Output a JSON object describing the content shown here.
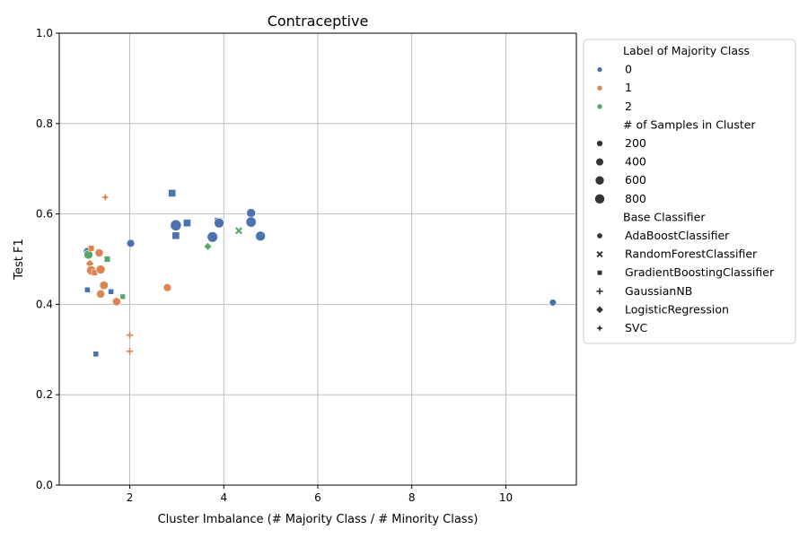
{
  "chart_data": {
    "type": "scatter",
    "title": "Contraceptive",
    "xlabel": "Cluster Imbalance (# Majority Class / # Minority Class)",
    "ylabel": "Test F1",
    "xlim": [
      0.5,
      11.5
    ],
    "ylim": [
      0.0,
      1.0
    ],
    "xticks": [
      2,
      4,
      6,
      8,
      10
    ],
    "yticks": [
      0.0,
      0.2,
      0.4,
      0.6,
      0.8,
      1.0
    ],
    "xtick_labels": [
      "2",
      "4",
      "6",
      "8",
      "10"
    ],
    "ytick_labels": [
      "0.0",
      "0.2",
      "0.4",
      "0.6",
      "0.8",
      "1.0"
    ],
    "grid": true,
    "legend_position": "outside-right",
    "legend": {
      "hue_title": "Label of Majority Class",
      "hue": [
        {
          "label": "0",
          "color": "#4c72b0"
        },
        {
          "label": "1",
          "color": "#dd8452"
        },
        {
          "label": "2",
          "color": "#55a868"
        }
      ],
      "size_title": "# of Samples in Cluster",
      "sizes": [
        {
          "label": "200",
          "value": 200
        },
        {
          "label": "400",
          "value": 400
        },
        {
          "label": "600",
          "value": 600
        },
        {
          "label": "800",
          "value": 800
        }
      ],
      "style_title": "Base Classifier",
      "styles": [
        {
          "label": "AdaBoostClassifier",
          "marker": "circle"
        },
        {
          "label": "RandomForestClassifier",
          "marker": "x"
        },
        {
          "label": "GradientBoostingClassifier",
          "marker": "square"
        },
        {
          "label": "GaussianNB",
          "marker": "plus"
        },
        {
          "label": "LogisticRegression",
          "marker": "diamond"
        },
        {
          "label": "SVC",
          "marker": "star"
        }
      ]
    },
    "points": [
      {
        "x": 1.1,
        "y": 0.517,
        "label": "0",
        "classifier": "AdaBoostClassifier",
        "samples": 300
      },
      {
        "x": 1.12,
        "y": 0.51,
        "label": "2",
        "classifier": "AdaBoostClassifier",
        "samples": 450
      },
      {
        "x": 1.1,
        "y": 0.432,
        "label": "0",
        "classifier": "GradientBoostingClassifier",
        "samples": 150
      },
      {
        "x": 1.15,
        "y": 0.49,
        "label": "1",
        "classifier": "LogisticRegression",
        "samples": 150
      },
      {
        "x": 1.18,
        "y": 0.524,
        "label": "1",
        "classifier": "GradientBoostingClassifier",
        "samples": 200
      },
      {
        "x": 1.18,
        "y": 0.475,
        "label": "1",
        "classifier": "AdaBoostClassifier",
        "samples": 500
      },
      {
        "x": 1.25,
        "y": 0.47,
        "label": "1",
        "classifier": "GradientBoostingClassifier",
        "samples": 200
      },
      {
        "x": 1.35,
        "y": 0.514,
        "label": "1",
        "classifier": "AdaBoostClassifier",
        "samples": 350
      },
      {
        "x": 1.38,
        "y": 0.477,
        "label": "1",
        "classifier": "AdaBoostClassifier",
        "samples": 450
      },
      {
        "x": 1.38,
        "y": 0.423,
        "label": "1",
        "classifier": "AdaBoostClassifier",
        "samples": 350
      },
      {
        "x": 1.45,
        "y": 0.442,
        "label": "1",
        "classifier": "AdaBoostClassifier",
        "samples": 400
      },
      {
        "x": 1.48,
        "y": 0.637,
        "label": "1",
        "classifier": "SVC",
        "samples": 150
      },
      {
        "x": 1.28,
        "y": 0.29,
        "label": "0",
        "classifier": "GradientBoostingClassifier",
        "samples": 150
      },
      {
        "x": 1.52,
        "y": 0.5,
        "label": "2",
        "classifier": "GradientBoostingClassifier",
        "samples": 200
      },
      {
        "x": 1.6,
        "y": 0.428,
        "label": "0",
        "classifier": "GradientBoostingClassifier",
        "samples": 150
      },
      {
        "x": 1.72,
        "y": 0.406,
        "label": "1",
        "classifier": "AdaBoostClassifier",
        "samples": 350
      },
      {
        "x": 1.85,
        "y": 0.417,
        "label": "2",
        "classifier": "GradientBoostingClassifier",
        "samples": 120
      },
      {
        "x": 2.0,
        "y": 0.332,
        "label": "1",
        "classifier": "GaussianNB",
        "samples": 120
      },
      {
        "x": 2.0,
        "y": 0.296,
        "label": "1",
        "classifier": "GaussianNB",
        "samples": 120
      },
      {
        "x": 2.02,
        "y": 0.535,
        "label": "0",
        "classifier": "AdaBoostClassifier",
        "samples": 300
      },
      {
        "x": 2.8,
        "y": 0.437,
        "label": "1",
        "classifier": "AdaBoostClassifier",
        "samples": 300
      },
      {
        "x": 2.9,
        "y": 0.646,
        "label": "0",
        "classifier": "GradientBoostingClassifier",
        "samples": 400
      },
      {
        "x": 2.98,
        "y": 0.575,
        "label": "0",
        "classifier": "AdaBoostClassifier",
        "samples": 800
      },
      {
        "x": 2.98,
        "y": 0.552,
        "label": "0",
        "classifier": "GradientBoostingClassifier",
        "samples": 400
      },
      {
        "x": 3.22,
        "y": 0.58,
        "label": "0",
        "classifier": "GradientBoostingClassifier",
        "samples": 400
      },
      {
        "x": 3.66,
        "y": 0.528,
        "label": "2",
        "classifier": "LogisticRegression",
        "samples": 120
      },
      {
        "x": 3.76,
        "y": 0.549,
        "label": "0",
        "classifier": "AdaBoostClassifier",
        "samples": 700
      },
      {
        "x": 3.88,
        "y": 0.584,
        "label": "0",
        "classifier": "GradientBoostingClassifier",
        "samples": 400
      },
      {
        "x": 3.9,
        "y": 0.58,
        "label": "0",
        "classifier": "AdaBoostClassifier",
        "samples": 600
      },
      {
        "x": 4.32,
        "y": 0.563,
        "label": "2",
        "classifier": "RandomForestClassifier",
        "samples": 150
      },
      {
        "x": 4.58,
        "y": 0.602,
        "label": "0",
        "classifier": "AdaBoostClassifier",
        "samples": 450
      },
      {
        "x": 4.58,
        "y": 0.582,
        "label": "0",
        "classifier": "AdaBoostClassifier",
        "samples": 650
      },
      {
        "x": 4.78,
        "y": 0.551,
        "label": "0",
        "classifier": "AdaBoostClassifier",
        "samples": 600
      },
      {
        "x": 11.0,
        "y": 0.404,
        "label": "0",
        "classifier": "AdaBoostClassifier",
        "samples": 200
      }
    ]
  }
}
